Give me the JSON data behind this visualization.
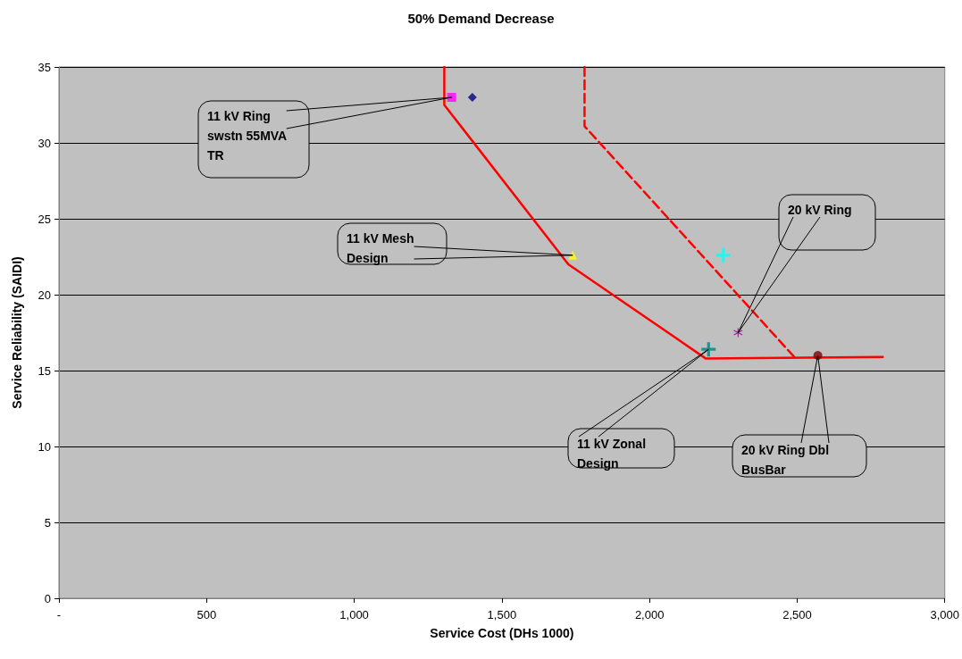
{
  "chart_data": {
    "type": "scatter",
    "title": "50% Demand Decrease",
    "xlabel": "Service Cost (DHs 1000)",
    "ylabel": "Service Reliability (SAIDI)",
    "xlim": [
      0,
      3000
    ],
    "xticks": [
      {
        "value": 0,
        "label": "-"
      },
      500,
      {
        "value": 1000,
        "label": "1,000"
      },
      {
        "value": 1500,
        "label": "1,500"
      },
      {
        "value": 2000,
        "label": "2,000"
      },
      {
        "value": 2500,
        "label": "2,500"
      },
      {
        "value": 3000,
        "label": "3,000"
      }
    ],
    "ylim": [
      0,
      35
    ],
    "yticks": [
      0,
      5,
      10,
      15,
      20,
      25,
      30,
      35
    ],
    "grid": "y",
    "series": [
      {
        "type": "line",
        "color": "#ff0000",
        "line_style": "solid",
        "marker": "none",
        "x": [
          1305,
          1305,
          1725,
          2190,
          2790
        ],
        "values": [
          35,
          32.5,
          22,
          15.8,
          15.9
        ]
      },
      {
        "type": "line",
        "color": "#ff0000",
        "line_style": "dashed",
        "marker": "none",
        "x": [
          1780,
          1780,
          2490
        ],
        "values": [
          35,
          31.1,
          15.9
        ]
      },
      {
        "color": "#ff00ff",
        "marker": "square",
        "x": [
          1330
        ],
        "values": [
          33
        ]
      },
      {
        "color": "#000080",
        "marker": "diamond",
        "x": [
          1400
        ],
        "values": [
          33
        ]
      },
      {
        "color": "#ffff00",
        "marker": "triangle",
        "x": [
          1740
        ],
        "values": [
          22.6
        ]
      },
      {
        "color": "#00ffff",
        "marker": "cross",
        "x": [
          2250
        ],
        "values": [
          22.6
        ]
      },
      {
        "color": "#800080",
        "marker": "star",
        "x": [
          2300
        ],
        "values": [
          17.5
        ]
      },
      {
        "color": "#008080",
        "marker": "cross",
        "x": [
          2200
        ],
        "values": [
          16.4
        ]
      },
      {
        "color": "#800000",
        "marker": "circle",
        "x": [
          2570
        ],
        "values": [
          16
        ]
      }
    ],
    "annotations": [
      {
        "text": "11 kV Ring swstn 55MVA TR",
        "x": 1330,
        "y": 33
      },
      {
        "text": "11 kV Mesh Design",
        "x": 1740,
        "y": 22.6
      },
      {
        "text": "20 kV Ring",
        "x": 2300,
        "y": 17.5
      },
      {
        "text": "11 kV Zonal Design",
        "x": 2200,
        "y": 16.4
      },
      {
        "text": "20 kV Ring Dbl BusBar",
        "x": 2570,
        "y": 16
      }
    ]
  }
}
